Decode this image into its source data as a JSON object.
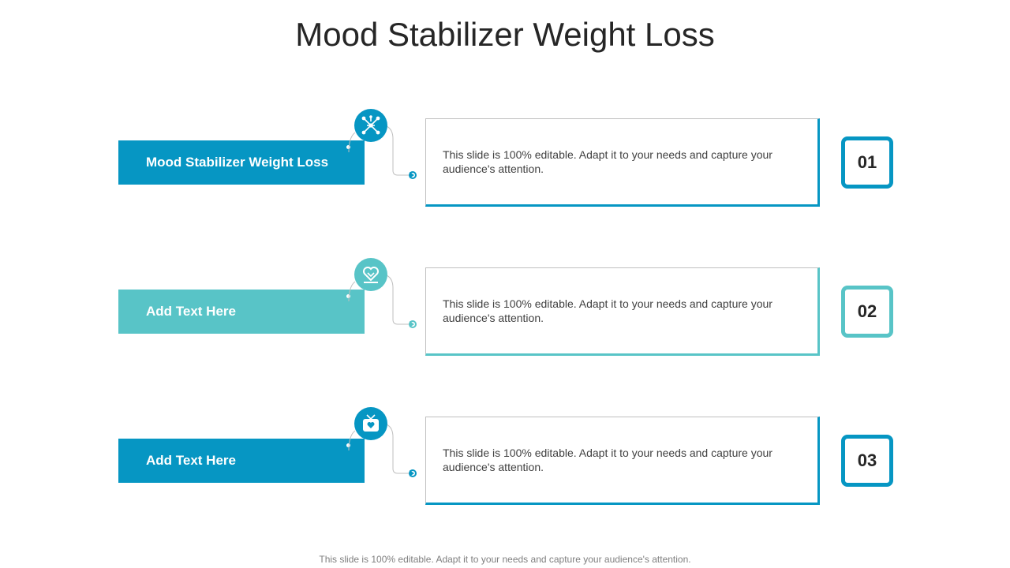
{
  "title": "Mood Stabilizer Weight Loss",
  "colors": {
    "blue": "#0696c3",
    "teal": "#58c4c7"
  },
  "rows": [
    {
      "label": "Mood Stabilizer Weight Loss",
      "description": "This slide is 100% editable. Adapt it to your needs and capture your audience's attention.",
      "number": "01",
      "color": "#0696c3",
      "icon": "molecule-network-icon"
    },
    {
      "label": "Add Text Here",
      "description": "This slide is 100% editable. Adapt it to your needs and capture your audience's attention.",
      "number": "02",
      "color": "#58c4c7",
      "icon": "heart-scale-icon"
    },
    {
      "label": "Add Text Here",
      "description": "This slide is 100% editable. Adapt it to your needs and capture your audience's attention.",
      "number": "03",
      "color": "#0696c3",
      "icon": "tv-heart-icon"
    }
  ],
  "footer": "This slide is 100% editable. Adapt it to your needs and capture your audience's attention."
}
